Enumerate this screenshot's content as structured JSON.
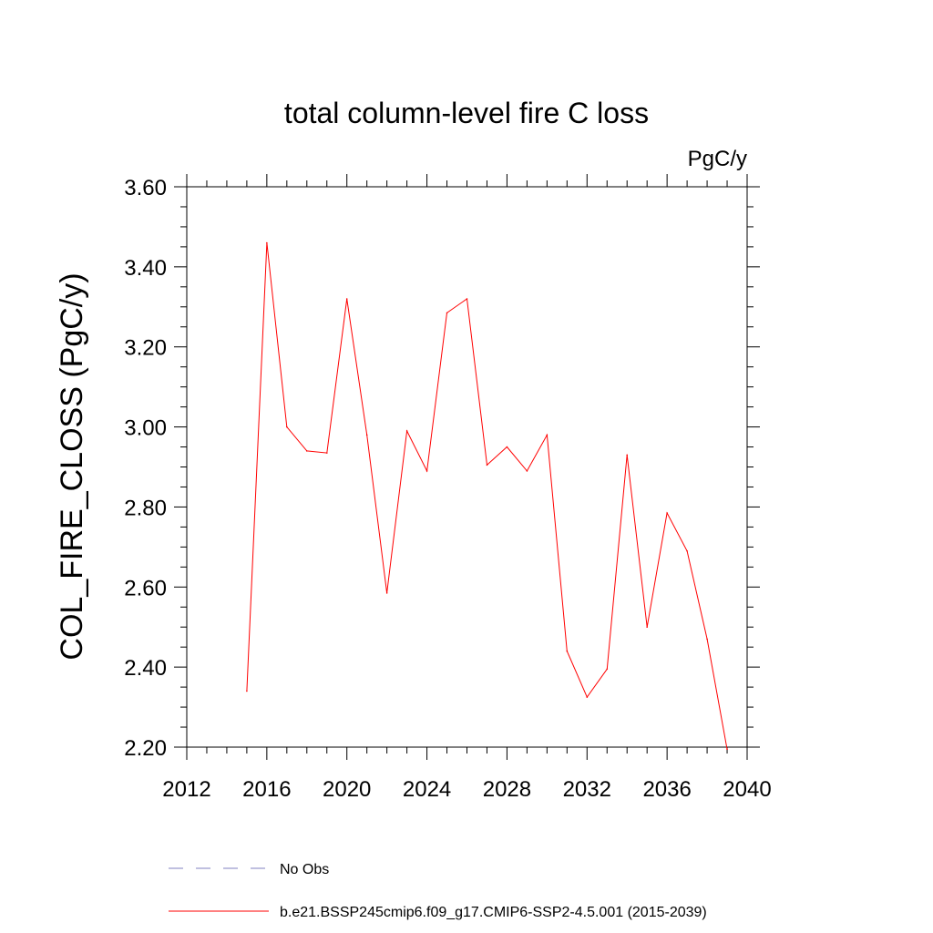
{
  "chart_data": {
    "type": "line",
    "title": "total column-level fire C loss",
    "units_label": "PgC/y",
    "xlabel": "",
    "ylabel": "COL_FIRE_CLOSS  (PgC/y)",
    "xlim": [
      2012,
      2040
    ],
    "ylim": [
      2.2,
      3.6
    ],
    "x_ticks": [
      2012,
      2016,
      2020,
      2024,
      2028,
      2032,
      2036,
      2040
    ],
    "x_tick_labels": [
      "2012",
      "2016",
      "2020",
      "2024",
      "2028",
      "2032",
      "2036",
      "2040"
    ],
    "y_ticks": [
      2.2,
      2.4,
      2.6,
      2.8,
      3.0,
      3.2,
      3.4,
      3.6
    ],
    "y_tick_labels": [
      "2.20",
      "2.40",
      "2.60",
      "2.80",
      "3.00",
      "3.20",
      "3.40",
      "3.60"
    ],
    "grid": false,
    "legend_position": "bottom",
    "series": [
      {
        "name": "b.e21.BSSP245cmip6.f09_g17.CMIP6-SSP2-4.5.001 (2015-2039)",
        "color": "#ff0000",
        "dash": "solid",
        "x": [
          2015,
          2016,
          2017,
          2018,
          2019,
          2020,
          2021,
          2022,
          2023,
          2024,
          2025,
          2026,
          2027,
          2028,
          2029,
          2030,
          2031,
          2032,
          2033,
          2034,
          2035,
          2036,
          2037,
          2038,
          2039
        ],
        "y": [
          2.34,
          3.46,
          3.0,
          2.94,
          2.935,
          3.32,
          2.98,
          2.585,
          2.99,
          2.89,
          3.285,
          3.32,
          2.905,
          2.95,
          2.89,
          2.98,
          2.44,
          2.325,
          2.395,
          2.93,
          2.5,
          2.785,
          2.69,
          2.47,
          2.195
        ]
      }
    ],
    "legend": [
      {
        "label": "No Obs",
        "color": "#8080c0",
        "dash": "dashed"
      },
      {
        "label": "b.e21.BSSP245cmip6.f09_g17.CMIP6-SSP2-4.5.001 (2015-2039)",
        "color": "#ff0000",
        "dash": "solid"
      }
    ]
  }
}
